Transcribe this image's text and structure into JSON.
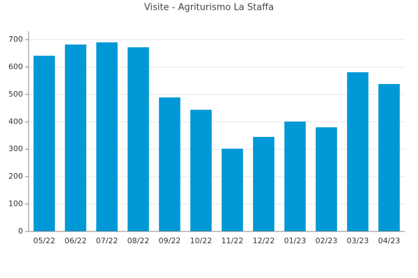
{
  "chart_data": {
    "type": "bar",
    "title": "Visite - Agriturismo La Staffa",
    "categories": [
      "05/22",
      "06/22",
      "07/22",
      "08/22",
      "09/22",
      "10/22",
      "11/22",
      "12/22",
      "01/23",
      "02/23",
      "03/23",
      "04/23"
    ],
    "values": [
      641,
      682,
      690,
      672,
      489,
      444,
      302,
      345,
      401,
      380,
      581,
      538
    ],
    "color": "#0098d6",
    "ylim": [
      0,
      700
    ],
    "yticks": [
      0,
      100,
      200,
      300,
      400,
      500,
      600,
      700
    ],
    "grid": true
  }
}
